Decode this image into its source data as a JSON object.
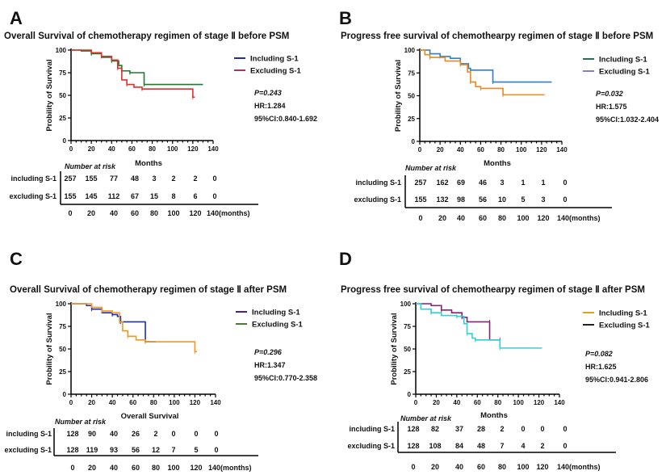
{
  "chart_data": [
    {
      "panel": "A",
      "type": "line",
      "title": "Overall  Survival of chemotherapy regimen of stage Ⅱ before PSM",
      "xlabel": "Months",
      "ylabel": "Probility of  Survival",
      "xlim": [
        0,
        140
      ],
      "ylim": [
        0,
        100
      ],
      "x_ticks": [
        0,
        20,
        40,
        60,
        80,
        100,
        120,
        140
      ],
      "y_ticks": [
        0,
        25,
        50,
        75,
        100
      ],
      "legend": "right",
      "series": [
        {
          "name": "Including S-1",
          "legend_color": "#1f2fa0",
          "line_color": "#1e7a2e",
          "points": [
            [
              0,
              100
            ],
            [
              10,
              99
            ],
            [
              20,
              96
            ],
            [
              30,
              92
            ],
            [
              40,
              88
            ],
            [
              47,
              83
            ],
            [
              50,
              77
            ],
            [
              58,
              77
            ],
            [
              58,
              75
            ],
            [
              72,
              75
            ],
            [
              72,
              62
            ],
            [
              130,
              62
            ]
          ]
        },
        {
          "name": "Excluding S-1",
          "legend_color": "#b0306a",
          "line_color": "#e0302a",
          "points": [
            [
              0,
              100
            ],
            [
              20,
              97
            ],
            [
              30,
              93
            ],
            [
              40,
              89
            ],
            [
              46,
              80
            ],
            [
              50,
              67
            ],
            [
              55,
              62
            ],
            [
              62,
              59
            ],
            [
              70,
              57
            ],
            [
              120,
              57
            ],
            [
              120,
              48
            ],
            [
              122,
              48
            ]
          ]
        }
      ],
      "stats": {
        "p": "P=0.243",
        "hr": "HR:1.284",
        "ci": "95%CI:0.840-1.692"
      },
      "risk_table": {
        "heading": "Number at risk",
        "rows": [
          {
            "label": "including S-1",
            "values": [
              "257",
              "155",
              "77",
              "48",
              "3",
              "2",
              "2",
              "0"
            ]
          },
          {
            "label": "excluding S-1",
            "values": [
              "155",
              "145",
              "112",
              "67",
              "15",
              "8",
              "6",
              "0"
            ]
          }
        ],
        "times": [
          "0",
          "20",
          "40",
          "60",
          "80",
          "100",
          "120",
          "140(months)"
        ]
      }
    },
    {
      "panel": "B",
      "type": "line",
      "title": "Progress free survival  of chemothearpy regimen of stage Ⅱ before PSM",
      "xlabel": "Months",
      "ylabel": "Probility of  Survival",
      "xlim": [
        0,
        140
      ],
      "ylim": [
        0,
        100
      ],
      "x_ticks": [
        0,
        20,
        40,
        60,
        80,
        100,
        120,
        140
      ],
      "y_ticks": [
        0,
        25,
        50,
        75,
        100
      ],
      "legend": "right",
      "series": [
        {
          "name": "Including S-1",
          "legend_color": "#2e6b5a",
          "line_color": "#2f7fc8",
          "points": [
            [
              0,
              100
            ],
            [
              10,
              96
            ],
            [
              20,
              93
            ],
            [
              30,
              91
            ],
            [
              40,
              85
            ],
            [
              48,
              80
            ],
            [
              50,
              78
            ],
            [
              72,
              78
            ],
            [
              72,
              65
            ],
            [
              130,
              65
            ]
          ]
        },
        {
          "name": "Excluding S-1",
          "legend_color": "#8a7ad0",
          "line_color": "#e88a20",
          "points": [
            [
              0,
              100
            ],
            [
              5,
              95
            ],
            [
              10,
              92
            ],
            [
              25,
              88
            ],
            [
              40,
              84
            ],
            [
              47,
              76
            ],
            [
              50,
              65
            ],
            [
              55,
              60
            ],
            [
              60,
              58
            ],
            [
              82,
              58
            ],
            [
              82,
              51
            ],
            [
              123,
              51
            ]
          ]
        }
      ],
      "stats": {
        "p": "P=0.032",
        "hr": "HR:1.575",
        "ci": "95%CI:1.032-2.404"
      },
      "risk_table": {
        "heading": "Number at risk",
        "rows": [
          {
            "label": "including S-1",
            "values": [
              "257",
              "162",
              "69",
              "46",
              "3",
              "1",
              "1",
              "0"
            ]
          },
          {
            "label": "excluding S-1",
            "values": [
              "155",
              "132",
              "98",
              "56",
              "10",
              "5",
              "3",
              "0"
            ]
          }
        ],
        "times": [
          "0",
          "20",
          "40",
          "60",
          "80",
          "100",
          "120",
          "140(months)"
        ]
      }
    },
    {
      "panel": "C",
      "type": "line",
      "title": "Overall  Survival of chemotherapy regimen of stage Ⅱ after PSM",
      "xlabel": "Overall Survival",
      "ylabel": "Probility of  Survival",
      "xlim": [
        0,
        140
      ],
      "ylim": [
        0,
        100
      ],
      "x_ticks": [
        0,
        20,
        40,
        60,
        80,
        100,
        120,
        140
      ],
      "y_ticks": [
        0,
        25,
        50,
        75,
        100
      ],
      "legend": "right",
      "series": [
        {
          "name": "Including S-1",
          "legend_color": "#4a1f8a",
          "line_color": "#1c2fb8",
          "points": [
            [
              0,
              100
            ],
            [
              15,
              98
            ],
            [
              20,
              94
            ],
            [
              30,
              90
            ],
            [
              40,
              88
            ],
            [
              45,
              86
            ],
            [
              48,
              80
            ],
            [
              72,
              80
            ],
            [
              72,
              58
            ],
            [
              82,
              58
            ]
          ]
        },
        {
          "name": "Excluding S-1",
          "legend_color": "#4d7a3a",
          "line_color": "#ef9a25",
          "points": [
            [
              0,
              100
            ],
            [
              20,
              96
            ],
            [
              30,
              92
            ],
            [
              40,
              90
            ],
            [
              47,
              80
            ],
            [
              50,
              70
            ],
            [
              55,
              64
            ],
            [
              63,
              60
            ],
            [
              72,
              58
            ],
            [
              120,
              58
            ],
            [
              120,
              47
            ],
            [
              122,
              47
            ]
          ]
        }
      ],
      "stats": {
        "p": "P=0.296",
        "hr": "HR:1.347",
        "ci": "95%CI:0.770-2.358"
      },
      "risk_table": {
        "heading": "Number at  risk",
        "rows": [
          {
            "label": "including S-1",
            "values": [
              "128",
              "90",
              "40",
              "26",
              "2",
              "0",
              "0",
              "0"
            ]
          },
          {
            "label": "excluding S-1",
            "values": [
              "128",
              "119",
              "93",
              "56",
              "12",
              "7",
              "5",
              "0"
            ]
          }
        ],
        "times": [
          "0",
          "20",
          "40",
          "60",
          "80",
          "100",
          "120",
          "140(months)"
        ]
      }
    },
    {
      "panel": "D",
      "type": "line",
      "title": "Progress free survival  of chemothearpy regimen of stage Ⅱ after PSM",
      "xlabel": "Months",
      "ylabel": "Probility of  Survival",
      "xlim": [
        0,
        140
      ],
      "ylim": [
        0,
        100
      ],
      "x_ticks": [
        0,
        20,
        40,
        60,
        80,
        100,
        120,
        140
      ],
      "y_ticks": [
        0,
        25,
        50,
        75,
        100
      ],
      "legend": "right",
      "series": [
        {
          "name": "Including S-1",
          "legend_color": "#e0a020",
          "line_color": "#8a1f7a",
          "points": [
            [
              0,
              100
            ],
            [
              15,
              98
            ],
            [
              25,
              93
            ],
            [
              35,
              90
            ],
            [
              45,
              85
            ],
            [
              50,
              80
            ],
            [
              72,
              80
            ],
            [
              72,
              60
            ],
            [
              82,
              60
            ]
          ]
        },
        {
          "name": "Excluding S-1",
          "legend_color": "#222222",
          "line_color": "#30d0d8",
          "points": [
            [
              0,
              100
            ],
            [
              5,
              94
            ],
            [
              15,
              90
            ],
            [
              25,
              87
            ],
            [
              40,
              86
            ],
            [
              47,
              78
            ],
            [
              50,
              67
            ],
            [
              55,
              62
            ],
            [
              58,
              60
            ],
            [
              82,
              60
            ],
            [
              82,
              51
            ],
            [
              123,
              51
            ]
          ]
        }
      ],
      "stats": {
        "p": "P=0.082",
        "hr": "HR:1.625",
        "ci": "95%CI:0.941-2.806"
      },
      "risk_table": {
        "heading": "Number at  risk",
        "rows": [
          {
            "label": "including S-1",
            "values": [
              "128",
              "82",
              "37",
              "28",
              "2",
              "0",
              "0",
              "0"
            ]
          },
          {
            "label": "excluding S-1",
            "values": [
              "128",
              "108",
              "84",
              "48",
              "7",
              "4",
              "2",
              "0"
            ]
          }
        ],
        "times": [
          "0",
          "20",
          "40",
          "60",
          "80",
          "100",
          "120",
          "140(months)"
        ]
      }
    }
  ]
}
